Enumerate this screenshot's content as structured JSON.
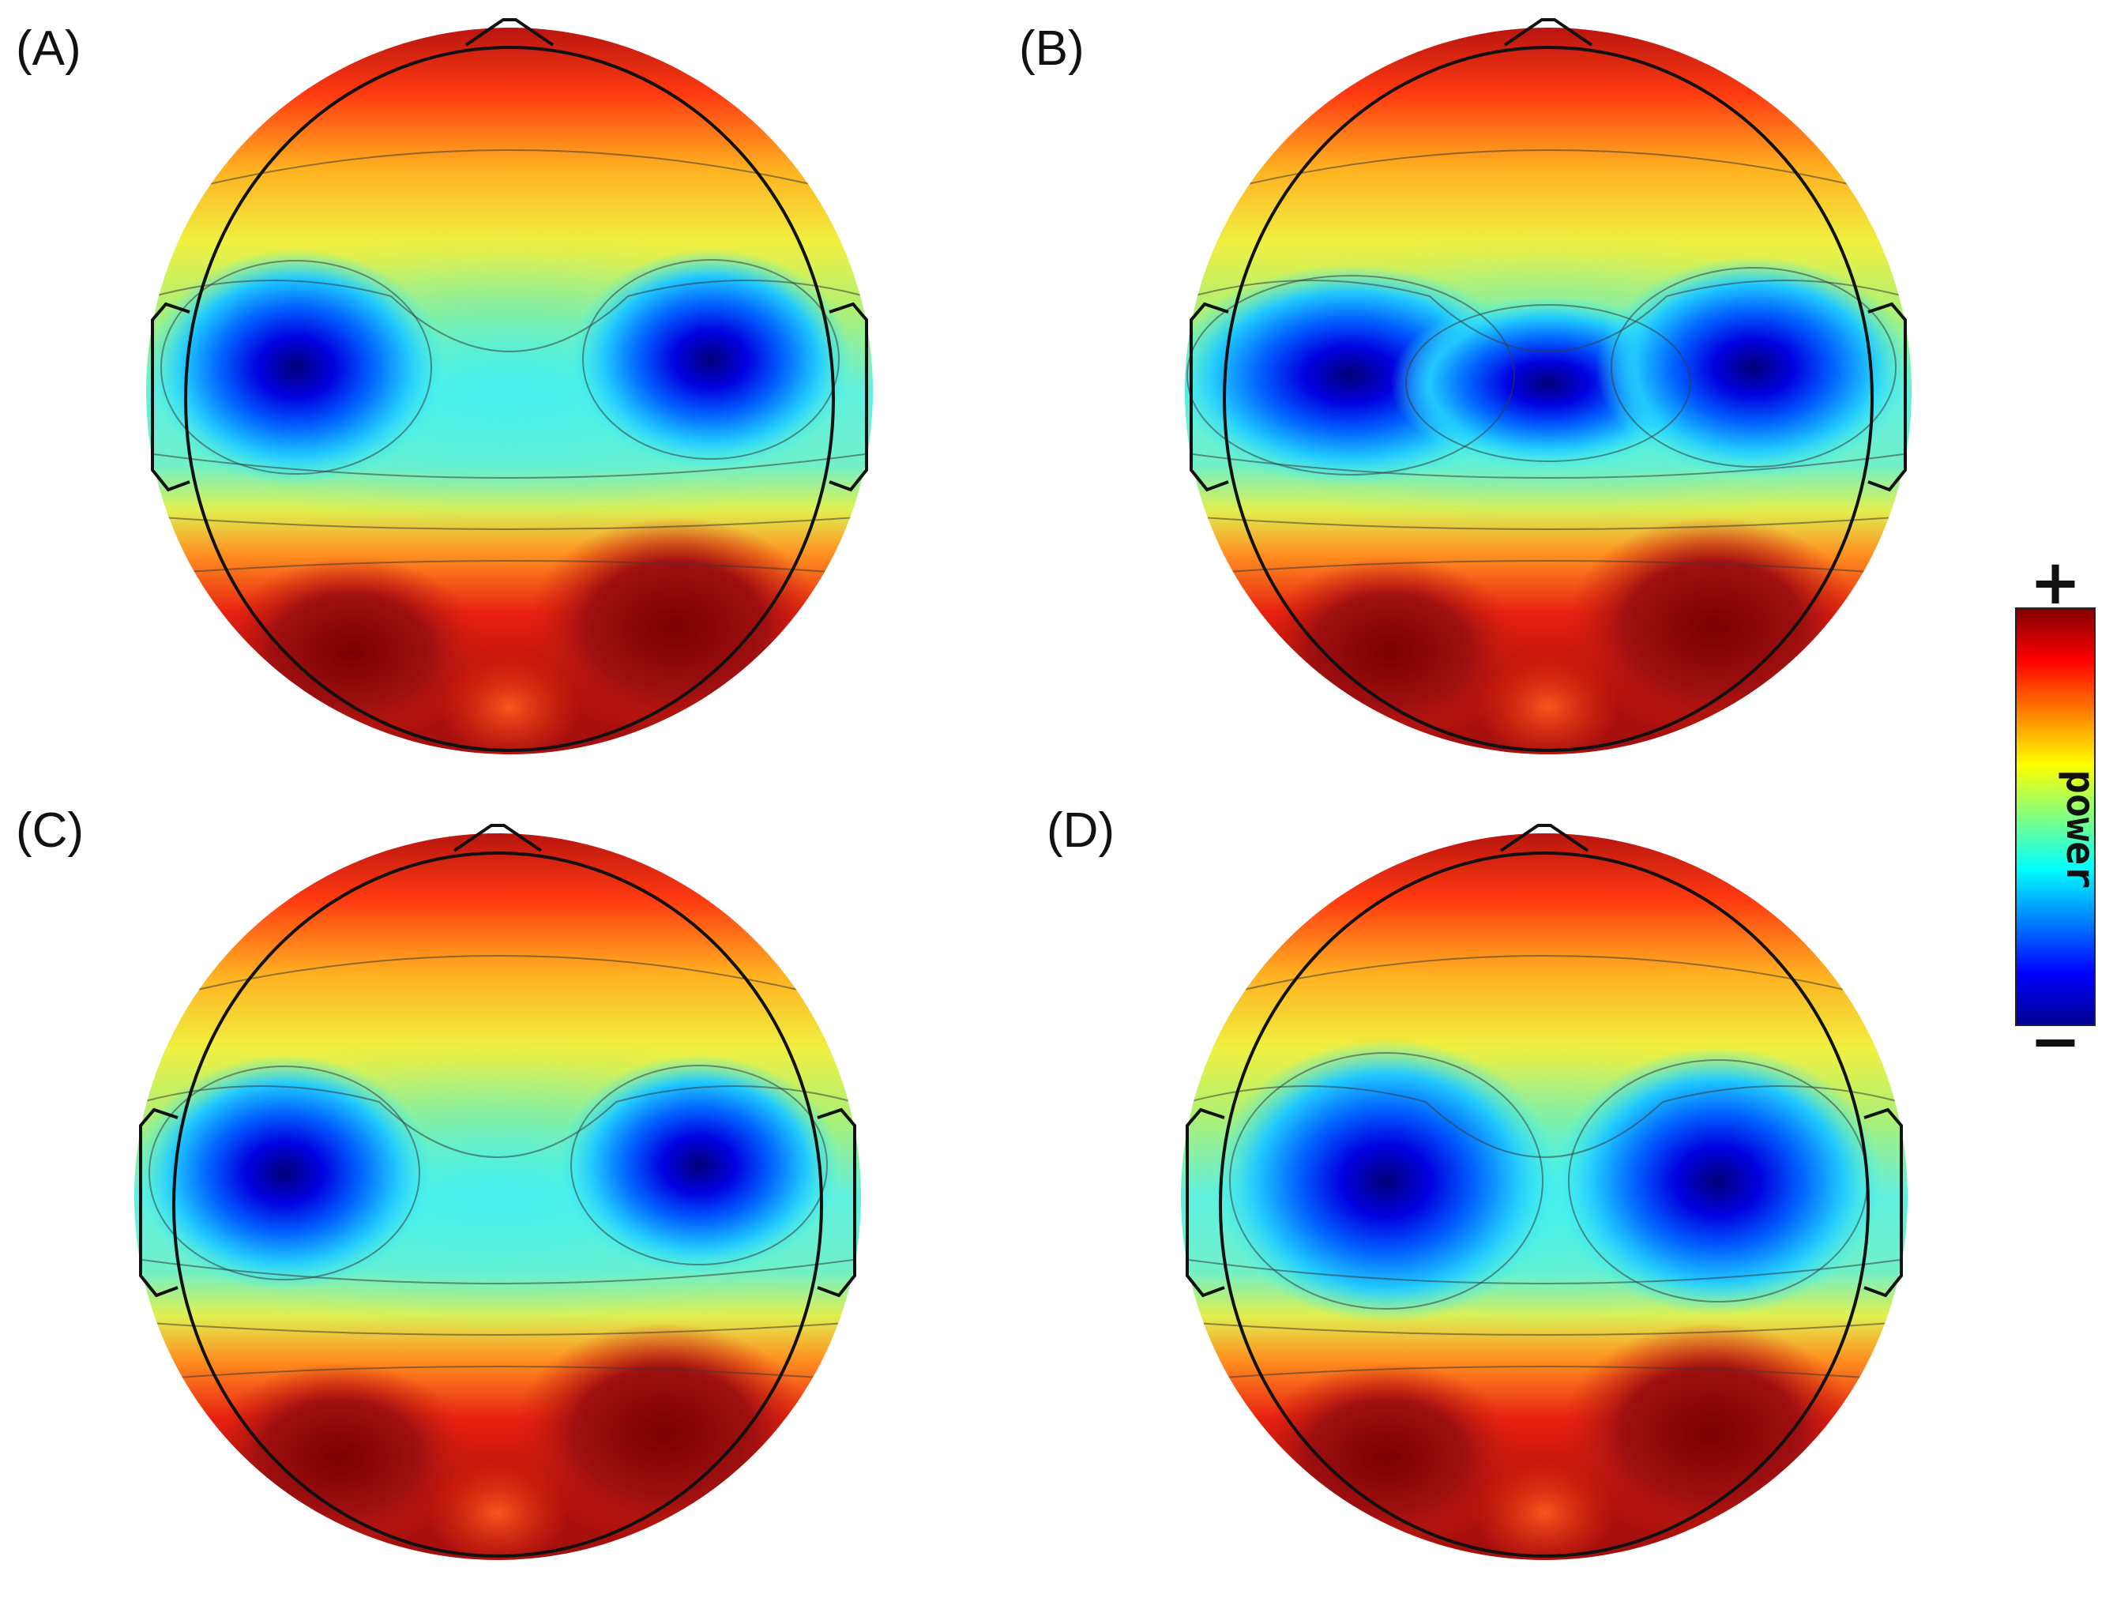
{
  "panels": [
    {
      "id": "A",
      "label": "(A)",
      "pattern": "two-lobe"
    },
    {
      "id": "B",
      "label": "(B)",
      "pattern": "merged"
    },
    {
      "id": "C",
      "label": "(C)",
      "pattern": "two-lobe"
    },
    {
      "id": "D",
      "label": "(D)",
      "pattern": "wide-lobe"
    }
  ],
  "colorbar": {
    "label": "power",
    "max_sign": "+",
    "min_sign": "−",
    "colormap": "jet",
    "colors": [
      "#00008f",
      "#0000ff",
      "#0080ff",
      "#00ffff",
      "#80ff80",
      "#ffff00",
      "#ff8000",
      "#ff0000",
      "#800000"
    ]
  }
}
